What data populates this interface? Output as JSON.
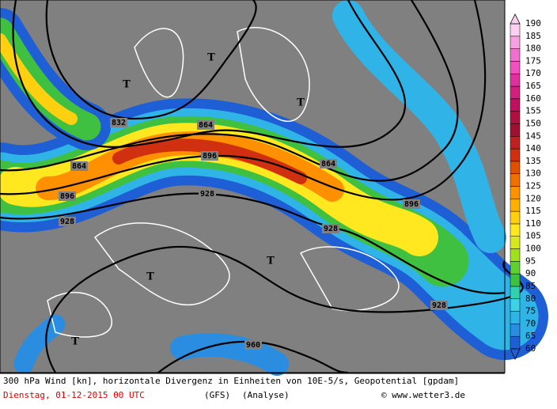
{
  "map": {
    "contour_labels": [
      "832",
      "864",
      "896",
      "928",
      "864",
      "896",
      "928",
      "864",
      "896",
      "928",
      "928",
      "960"
    ],
    "low_labels": [
      "T",
      "T",
      "T",
      "T",
      "T",
      "T"
    ],
    "colorbar": {
      "ticks": [
        60,
        65,
        70,
        75,
        80,
        85,
        90,
        95,
        100,
        105,
        110,
        115,
        120,
        125,
        130,
        135,
        140,
        145,
        150,
        155,
        160,
        165,
        170,
        175,
        180,
        185,
        190
      ],
      "colors": [
        "#1f5fd6",
        "#2a8de0",
        "#30b4e8",
        "#40d0e8",
        "#30d0b0",
        "#40c040",
        "#60d030",
        "#a0e020",
        "#d8e820",
        "#ffe820",
        "#ffd010",
        "#ffb000",
        "#ff9000",
        "#f07000",
        "#e05000",
        "#d03010",
        "#c02020",
        "#a01030",
        "#b01040",
        "#c01060",
        "#d02080",
        "#e030a0",
        "#f050c0",
        "#f070d0",
        "#f8a0e0",
        "#fcd0f0"
      ]
    }
  },
  "caption": {
    "line1": "300 hPa Wind [kn], horizontale Divergenz in Einheiten von 10E-5/s, Geopotential [gpdam]",
    "date": "Dienstag, 01-12-2015  00 UTC",
    "model": "(GFS)",
    "run": "(Analyse)",
    "source": "© www.wetter3.de"
  }
}
